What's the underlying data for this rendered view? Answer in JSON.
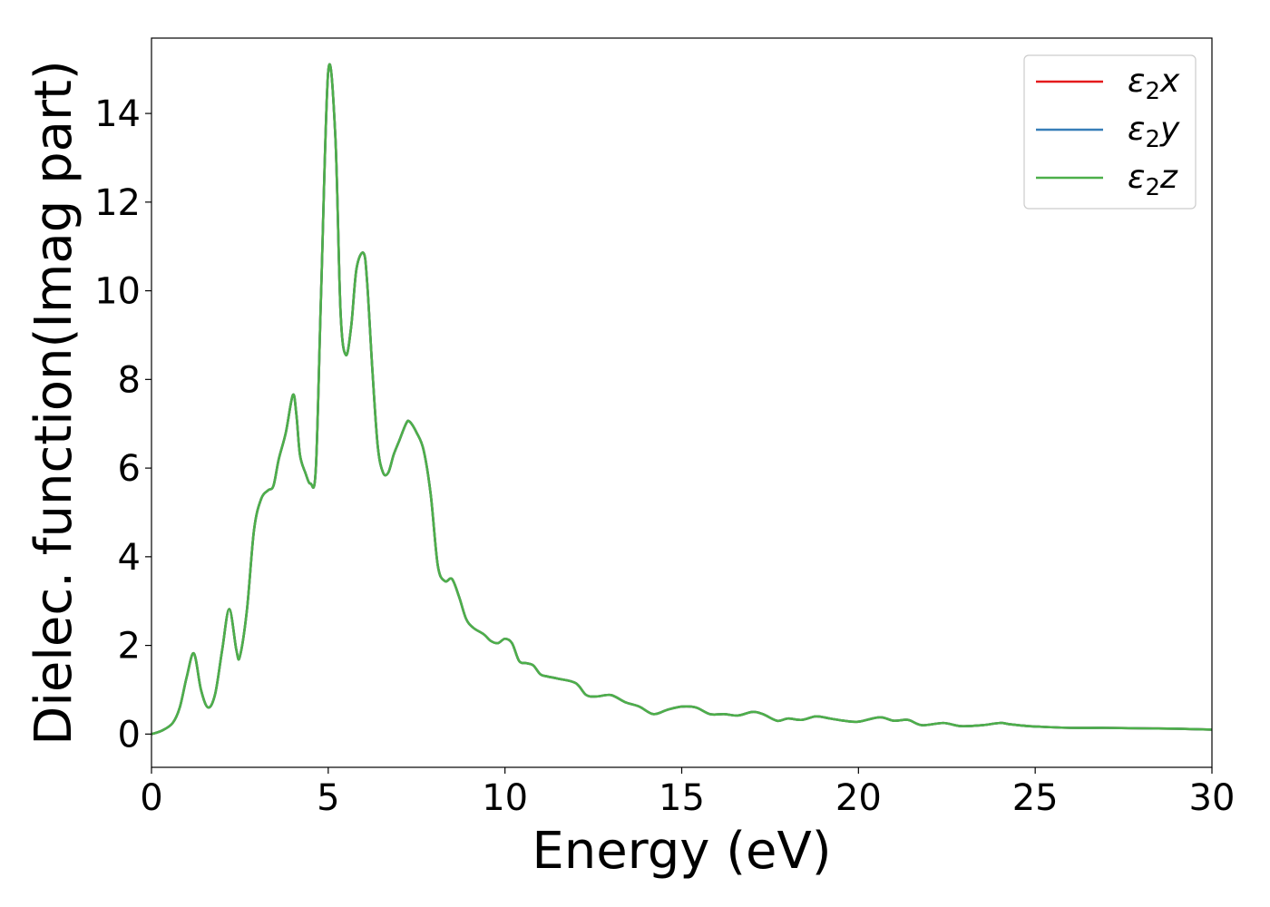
{
  "chart_data": {
    "type": "line",
    "title": "",
    "xlabel": "Energy (eV)",
    "ylabel": "Dielec. function(Imag part)",
    "xlim": [
      0,
      30
    ],
    "ylim": [
      -0.75,
      15.7
    ],
    "xticks": [
      0,
      5,
      10,
      15,
      20,
      25,
      30
    ],
    "yticks": [
      0,
      2,
      4,
      6,
      8,
      10,
      12,
      14
    ],
    "grid": false,
    "legend_position": "top-right",
    "series": [
      {
        "name": "ε₂x",
        "name_parts": {
          "base": "ε",
          "sub": "2",
          "suffix": "x"
        },
        "color": "#e41a1c"
      },
      {
        "name": "ε₂y",
        "name_parts": {
          "base": "ε",
          "sub": "2",
          "suffix": "y"
        },
        "color": "#377eb8"
      },
      {
        "name": "ε₂z",
        "name_parts": {
          "base": "ε",
          "sub": "2",
          "suffix": "z"
        },
        "color": "#4daf4a"
      }
    ],
    "x": [
      0,
      0.3,
      0.6,
      0.8,
      1.0,
      1.2,
      1.4,
      1.6,
      1.8,
      2.0,
      2.2,
      2.4,
      2.5,
      2.7,
      2.9,
      3.1,
      3.3,
      3.45,
      3.6,
      3.8,
      4.0,
      4.1,
      4.2,
      4.35,
      4.5,
      4.65,
      4.8,
      5.0,
      5.2,
      5.35,
      5.5,
      5.65,
      5.8,
      6.0,
      6.1,
      6.25,
      6.4,
      6.55,
      6.7,
      6.85,
      7.0,
      7.2,
      7.3,
      7.5,
      7.7,
      7.9,
      8.1,
      8.3,
      8.5,
      8.7,
      8.9,
      9.1,
      9.4,
      9.6,
      9.8,
      10.0,
      10.2,
      10.4,
      10.6,
      10.8,
      11.0,
      11.2,
      11.5,
      12.0,
      12.3,
      12.6,
      13.0,
      13.4,
      13.8,
      14.2,
      14.6,
      15.0,
      15.4,
      15.8,
      16.2,
      16.6,
      17.0,
      17.3,
      17.7,
      18.0,
      18.4,
      18.8,
      19.2,
      19.6,
      20.0,
      20.6,
      21.0,
      21.4,
      21.8,
      22.4,
      22.9,
      23.5,
      24.0,
      24.3,
      24.8,
      25.3,
      26.0,
      27.0,
      28.0,
      29.0,
      30.0
    ],
    "values": [
      0.0,
      0.08,
      0.25,
      0.6,
      1.3,
      1.82,
      1.0,
      0.6,
      0.9,
      1.9,
      2.82,
      1.9,
      1.75,
      2.8,
      4.6,
      5.3,
      5.5,
      5.6,
      6.2,
      6.8,
      7.65,
      7.2,
      6.3,
      5.9,
      5.65,
      6.0,
      10.0,
      14.95,
      13.5,
      9.5,
      8.55,
      9.2,
      10.5,
      10.85,
      10.2,
      8.2,
      6.5,
      5.9,
      5.9,
      6.3,
      6.6,
      7.0,
      7.05,
      6.8,
      6.4,
      5.4,
      3.8,
      3.45,
      3.5,
      3.1,
      2.6,
      2.4,
      2.25,
      2.1,
      2.05,
      2.15,
      2.05,
      1.65,
      1.6,
      1.55,
      1.35,
      1.3,
      1.25,
      1.15,
      0.88,
      0.85,
      0.88,
      0.72,
      0.62,
      0.45,
      0.55,
      0.62,
      0.6,
      0.45,
      0.45,
      0.42,
      0.5,
      0.45,
      0.3,
      0.35,
      0.32,
      0.4,
      0.35,
      0.3,
      0.28,
      0.38,
      0.3,
      0.32,
      0.2,
      0.25,
      0.18,
      0.2,
      0.25,
      0.22,
      0.18,
      0.16,
      0.14,
      0.14,
      0.13,
      0.12,
      0.1
    ]
  }
}
